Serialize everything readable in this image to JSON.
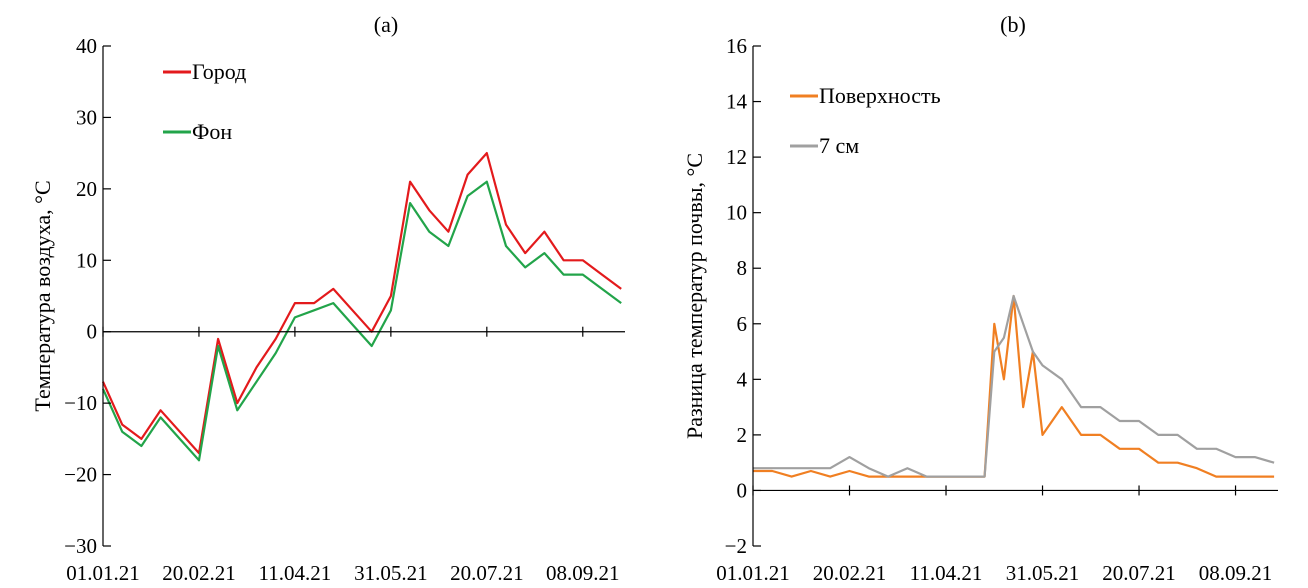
{
  "chart_data": [
    {
      "type": "line",
      "title": "(a)",
      "ylabel": "Температура воздуха, °C",
      "xlabel": "",
      "x_tick_labels": [
        "01.01.21",
        "20.02.21",
        "11.04.21",
        "31.05.21",
        "20.07.21",
        "08.09.21"
      ],
      "x_range": [
        "01.01.21",
        "30.09.21"
      ],
      "ylim": [
        -30,
        40
      ],
      "y_ticks": [
        -30,
        -20,
        -10,
        0,
        10,
        20,
        30,
        40
      ],
      "legend_position": "top-left",
      "series": [
        {
          "name": "Город",
          "color": "#e31a1c",
          "x": [
            "01.01.21",
            "11.01.21",
            "21.01.21",
            "31.01.21",
            "10.02.21",
            "20.02.21",
            "02.03.21",
            "12.03.21",
            "22.03.21",
            "01.04.21",
            "11.04.21",
            "21.04.21",
            "01.05.21",
            "11.05.21",
            "21.05.21",
            "31.05.21",
            "10.06.21",
            "20.06.21",
            "30.06.21",
            "10.07.21",
            "20.07.21",
            "30.07.21",
            "09.08.21",
            "19.08.21",
            "29.08.21",
            "08.09.21",
            "18.09.21",
            "28.09.21"
          ],
          "values": [
            -7,
            -13,
            -15,
            -11,
            -14,
            -17,
            -1,
            -10,
            -5,
            -1,
            4,
            4,
            6,
            3,
            0,
            5,
            21,
            17,
            14,
            22,
            25,
            15,
            11,
            14,
            10,
            10,
            8,
            6
          ]
        },
        {
          "name": "Фон",
          "color": "#22a44a",
          "x": [
            "01.01.21",
            "11.01.21",
            "21.01.21",
            "31.01.21",
            "10.02.21",
            "20.02.21",
            "02.03.21",
            "12.03.21",
            "22.03.21",
            "01.04.21",
            "11.04.21",
            "21.04.21",
            "01.05.21",
            "11.05.21",
            "21.05.21",
            "31.05.21",
            "10.06.21",
            "20.06.21",
            "30.06.21",
            "10.07.21",
            "20.07.21",
            "30.07.21",
            "09.08.21",
            "19.08.21",
            "29.08.21",
            "08.09.21",
            "18.09.21",
            "28.09.21"
          ],
          "values": [
            -8,
            -14,
            -16,
            -12,
            -15,
            -18,
            -2,
            -11,
            -7,
            -3,
            2,
            3,
            4,
            1,
            -2,
            3,
            18,
            14,
            12,
            19,
            21,
            12,
            9,
            11,
            8,
            8,
            6,
            4
          ]
        }
      ]
    },
    {
      "type": "line",
      "title": "(b)",
      "ylabel": "Разница температур почвы, °C",
      "xlabel": "",
      "x_tick_labels": [
        "01.01.21",
        "20.02.21",
        "11.04.21",
        "31.05.21",
        "20.07.21",
        "08.09.21"
      ],
      "x_range": [
        "01.01.21",
        "30.09.21"
      ],
      "ylim": [
        -2,
        16
      ],
      "y_ticks": [
        -2,
        0,
        2,
        4,
        6,
        8,
        10,
        12,
        14,
        16
      ],
      "legend_position": "top-left",
      "series": [
        {
          "name": "Поверхность",
          "color": "#f07f22",
          "x": [
            "01.01.21",
            "11.01.21",
            "21.01.21",
            "31.01.21",
            "10.02.21",
            "20.02.21",
            "02.03.21",
            "12.03.21",
            "22.03.21",
            "01.04.21",
            "11.04.21",
            "21.04.21",
            "01.05.21",
            "06.05.21",
            "11.05.21",
            "16.05.21",
            "21.05.21",
            "26.05.21",
            "31.05.21",
            "10.06.21",
            "20.06.21",
            "30.06.21",
            "10.07.21",
            "20.07.21",
            "30.07.21",
            "09.08.21",
            "19.08.21",
            "29.08.21",
            "08.09.21",
            "18.09.21",
            "28.09.21"
          ],
          "values": [
            0.7,
            0.7,
            0.5,
            0.7,
            0.5,
            0.7,
            0.5,
            0.5,
            0.5,
            0.5,
            0.5,
            0.5,
            0.5,
            6,
            4,
            7,
            3,
            5,
            2,
            3,
            2,
            2,
            1.5,
            1.5,
            1,
            1,
            0.8,
            0.5,
            0.5,
            0.5,
            0.5
          ]
        },
        {
          "name": "7 см",
          "color": "#a0a0a0",
          "x": [
            "01.01.21",
            "11.01.21",
            "21.01.21",
            "31.01.21",
            "10.02.21",
            "20.02.21",
            "02.03.21",
            "12.03.21",
            "22.03.21",
            "01.04.21",
            "11.04.21",
            "21.04.21",
            "01.05.21",
            "06.05.21",
            "11.05.21",
            "16.05.21",
            "21.05.21",
            "26.05.21",
            "31.05.21",
            "10.06.21",
            "20.06.21",
            "30.06.21",
            "10.07.21",
            "20.07.21",
            "30.07.21",
            "09.08.21",
            "19.08.21",
            "29.08.21",
            "08.09.21",
            "18.09.21",
            "28.09.21"
          ],
          "values": [
            0.8,
            0.8,
            0.8,
            0.8,
            0.8,
            1.2,
            0.8,
            0.5,
            0.8,
            0.5,
            0.5,
            0.5,
            0.5,
            5,
            5.5,
            7,
            6,
            5,
            4.5,
            4,
            3,
            3,
            2.5,
            2.5,
            2,
            2,
            1.5,
            1.5,
            1.2,
            1.2,
            1
          ]
        }
      ]
    }
  ]
}
